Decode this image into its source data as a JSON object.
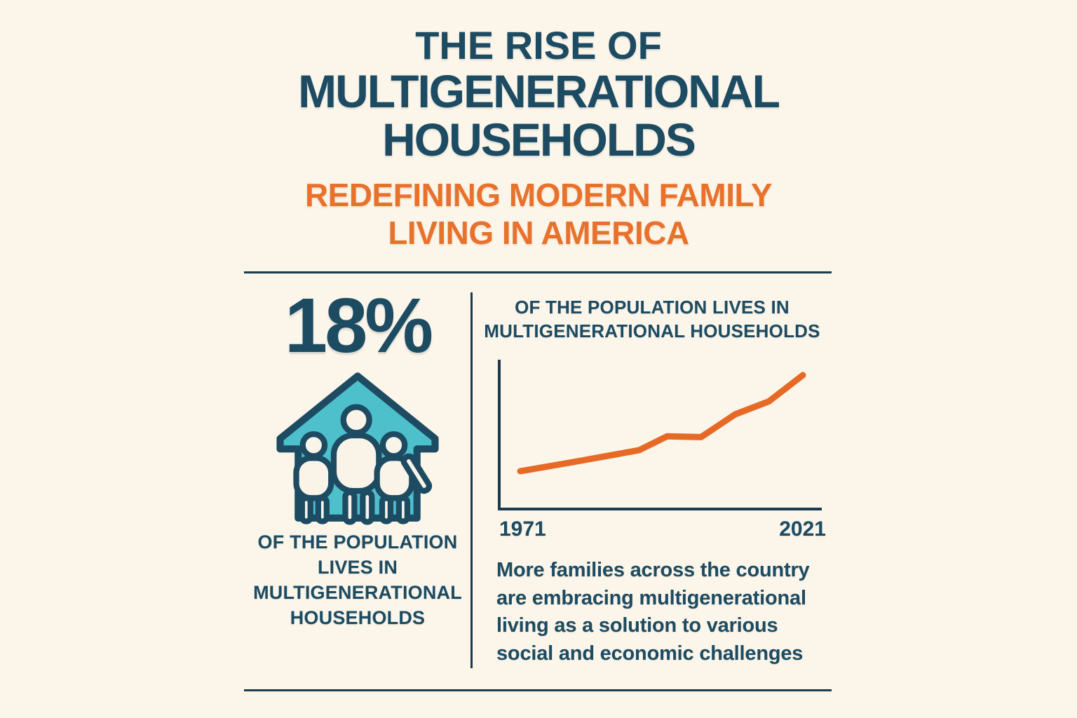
{
  "colors": {
    "background": "#FBF5EA",
    "navy_text": "#1C4B62",
    "divider_navy": "#1C3A50",
    "accent_orange": "#E8722C",
    "trend_line_orange": "#E66A25",
    "house_teal": "#4EC0CB",
    "figure_fill": "#FAF3E8"
  },
  "header": {
    "title_small": "THE RISE OF",
    "title_big": "MULTIGENERATIONAL\nHOUSEHOLDS",
    "subtitle": "REDEFINING MODERN FAMILY\nLIVING IN AMERICA"
  },
  "left_panel": {
    "stat_value": "18%",
    "icon": "family-house-icon",
    "caption": "OF THE POPULATION\nLIVES IN\nMULTIGENERATIONAL\nHOUSEHOLDS"
  },
  "right_panel": {
    "chart_title": "OF THE POPULATION LIVES IN\nMULTIGENERATIONAL HOUSEHOLDS",
    "x_axis_start_label": "1971",
    "x_axis_end_label": "2021",
    "paragraph": "More families across the country\nare embracing multigenerational\nliving as a solution to various\nsocial and economic challenges"
  },
  "chart_data": {
    "type": "line",
    "title": "OF THE POPULATION LIVES IN MULTIGENERATIONAL HOUSEHOLDS",
    "x": [
      1971,
      1980,
      1986,
      1992,
      1997,
      2003,
      2009,
      2015,
      2021
    ],
    "values": [
      7,
      8,
      8.7,
      9.4,
      11,
      10.9,
      13.5,
      15,
      18
    ],
    "x_tick_labels": [
      "1971",
      "2021"
    ],
    "xlabel": "",
    "ylabel": "",
    "grid": false,
    "legend": false,
    "line_color": "#E66A25",
    "axis_color": "#1C3A50",
    "note": "Only the endpoint years 1971 and 2021 are labeled; intermediate values are estimated from line position. Start ~7%, end 18% of the population."
  }
}
